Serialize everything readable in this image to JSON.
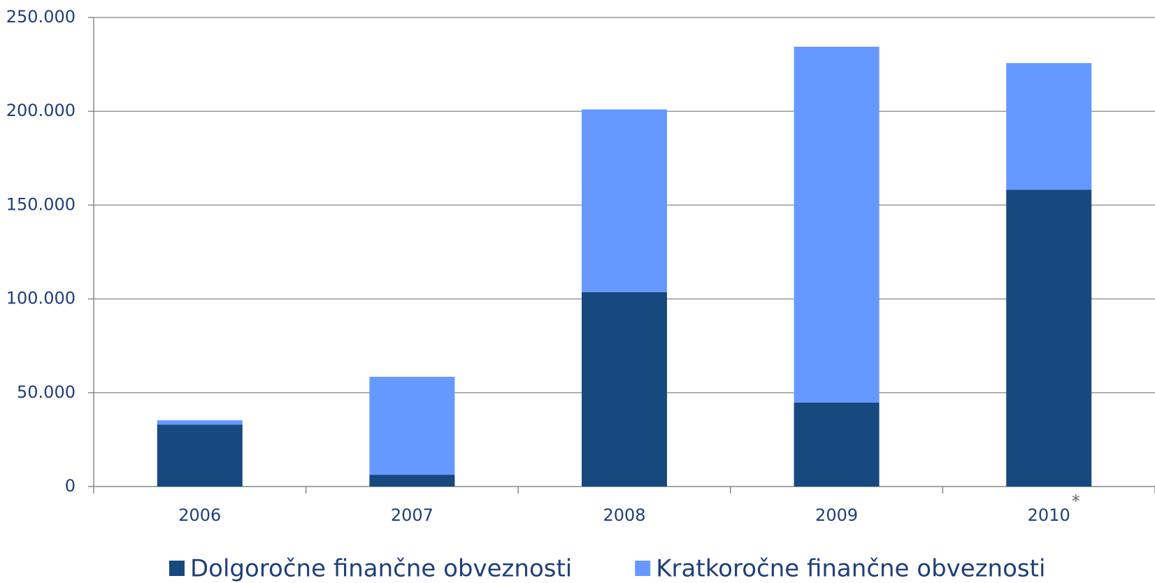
{
  "chart_data": {
    "type": "stacked_bar",
    "categories": [
      "2006",
      "2007",
      "2008",
      "2009",
      "2010"
    ],
    "annotation": "*",
    "series": [
      {
        "name": "Dolgoročne finančne obveznosti",
        "color": "#17497f",
        "values": [
          33000,
          6300,
          103600,
          44800,
          158200
        ]
      },
      {
        "name": "Kratkoročne finančne obveznosti",
        "color": "#6699ff",
        "values": [
          2300,
          52200,
          97400,
          189600,
          67500
        ]
      }
    ],
    "ylim": [
      0,
      250000
    ],
    "yticks": [
      0,
      {
        "value": 50000,
        "label": "50.000"
      },
      {
        "value": 100000,
        "label": "100.000"
      },
      {
        "value": 150000,
        "label": "150.000"
      },
      {
        "value": 200000,
        "label": "200.000"
      },
      {
        "value": 250000,
        "label": "250.000"
      }
    ],
    "grid": true
  }
}
